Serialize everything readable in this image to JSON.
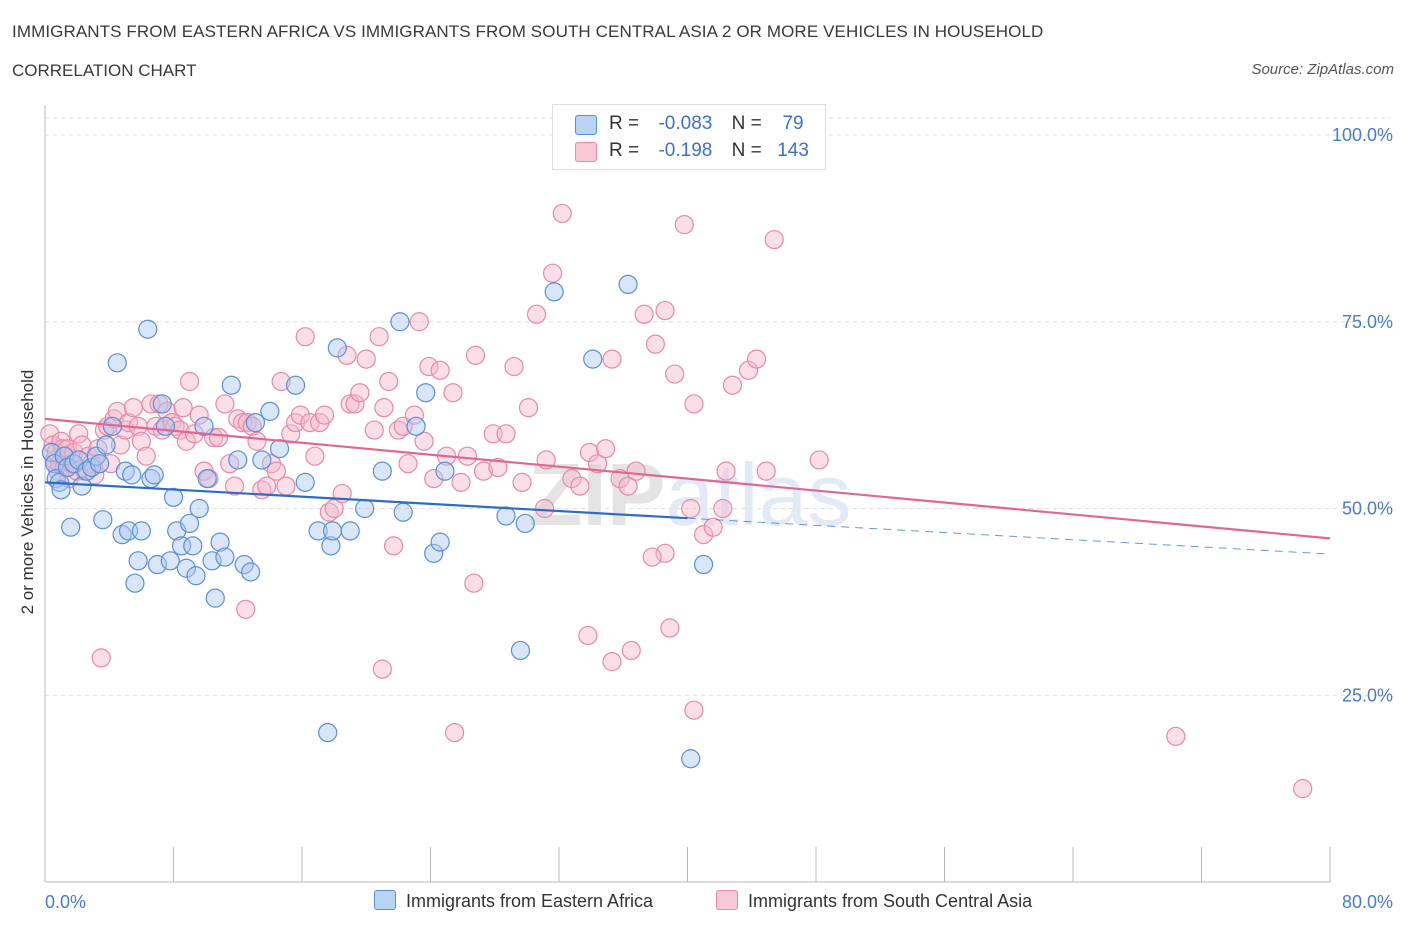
{
  "title": "IMMIGRANTS FROM EASTERN AFRICA VS IMMIGRANTS FROM SOUTH CENTRAL ASIA 2 OR MORE VEHICLES IN HOUSEHOLD",
  "subtitle": "CORRELATION CHART",
  "source": "Source: ZipAtlas.com",
  "watermark": "ZIPatlas",
  "legend": {
    "rows": [
      {
        "r_label": "R =",
        "r_value": "-0.083",
        "n_label": "N =",
        "n_value": "79"
      },
      {
        "r_label": "R =",
        "r_value": "-0.198",
        "n_label": "N =",
        "n_value": "143"
      }
    ]
  },
  "colors": {
    "blue_fill": "#aac8f0",
    "blue_stroke": "#5b8fd8",
    "blue_line": "#2e6cc8",
    "pink_fill": "#f5b8cb",
    "pink_stroke": "#e88aa8",
    "pink_line": "#e06890",
    "tick_text": "#4a7bd0",
    "grid": "#dddddd"
  },
  "chart_data": {
    "type": "scatter",
    "title": "IMMIGRANTS FROM EASTERN AFRICA VS IMMIGRANTS FROM SOUTH CENTRAL ASIA 2 OR MORE VEHICLES IN HOUSEHOLD",
    "xlabel": "",
    "ylabel": "2 or more Vehicles in Household",
    "xlim": [
      0,
      80
    ],
    "ylim": [
      0,
      100
    ],
    "x_tick_labels": [
      "0.0%",
      "80.0%"
    ],
    "y_ticks": [
      25,
      50,
      75,
      100
    ],
    "y_tick_labels": [
      "25.0%",
      "50.0%",
      "75.0%",
      "100.0%"
    ],
    "grid": true,
    "legend_position": "top-center",
    "series": [
      {
        "name": "Immigrants from Eastern Africa",
        "R": -0.083,
        "N": 79,
        "trend": {
          "x0": 0,
          "y0": 53.5,
          "x1": 40,
          "y1": 48.7,
          "dash_x1": 80,
          "dash_y1": 43.9
        },
        "points": [
          [
            0.4,
            57.5
          ],
          [
            0.6,
            56
          ],
          [
            0.7,
            54
          ],
          [
            0.9,
            53.5
          ],
          [
            1.0,
            52.5
          ],
          [
            1.2,
            57
          ],
          [
            1.4,
            55.5
          ],
          [
            1.6,
            47.5
          ],
          [
            1.8,
            56
          ],
          [
            2.1,
            56.5
          ],
          [
            2.3,
            53
          ],
          [
            2.6,
            55
          ],
          [
            2.9,
            55.5
          ],
          [
            3.2,
            57
          ],
          [
            3.4,
            56
          ],
          [
            3.6,
            48.5
          ],
          [
            3.8,
            58.5
          ],
          [
            4.2,
            61
          ],
          [
            4.5,
            69.5
          ],
          [
            4.8,
            46.5
          ],
          [
            5.0,
            55
          ],
          [
            5.2,
            47
          ],
          [
            5.4,
            54.5
          ],
          [
            5.6,
            40
          ],
          [
            5.8,
            43
          ],
          [
            6.0,
            47
          ],
          [
            6.4,
            74
          ],
          [
            6.6,
            54
          ],
          [
            6.8,
            54.5
          ],
          [
            7.0,
            42.5
          ],
          [
            7.3,
            64
          ],
          [
            7.5,
            61
          ],
          [
            7.8,
            43
          ],
          [
            8.0,
            51.5
          ],
          [
            8.2,
            47
          ],
          [
            8.5,
            45
          ],
          [
            8.8,
            42
          ],
          [
            9.0,
            48
          ],
          [
            9.2,
            45
          ],
          [
            9.4,
            41
          ],
          [
            9.6,
            50
          ],
          [
            9.9,
            61
          ],
          [
            10.1,
            54
          ],
          [
            10.4,
            43
          ],
          [
            10.6,
            38
          ],
          [
            10.9,
            45.5
          ],
          [
            11.2,
            43.5
          ],
          [
            11.6,
            66.5
          ],
          [
            12.0,
            56.5
          ],
          [
            12.4,
            42.5
          ],
          [
            12.8,
            41.5
          ],
          [
            13.1,
            61.5
          ],
          [
            13.5,
            56.5
          ],
          [
            14.0,
            63
          ],
          [
            14.6,
            58
          ],
          [
            15.6,
            66.5
          ],
          [
            16.2,
            53.5
          ],
          [
            17.0,
            47
          ],
          [
            17.6,
            20
          ],
          [
            17.8,
            45
          ],
          [
            17.9,
            47
          ],
          [
            18.2,
            71.5
          ],
          [
            19.0,
            47
          ],
          [
            19.9,
            50
          ],
          [
            21.0,
            55
          ],
          [
            22.3,
            49.5
          ],
          [
            23.1,
            61
          ],
          [
            24.2,
            44
          ],
          [
            24.6,
            45.5
          ],
          [
            22.1,
            75
          ],
          [
            23.7,
            65.5
          ],
          [
            24.9,
            55
          ],
          [
            28.7,
            49
          ],
          [
            29.6,
            31
          ],
          [
            29.9,
            48
          ],
          [
            31.7,
            79
          ],
          [
            34.1,
            70
          ],
          [
            36.3,
            80
          ],
          [
            40.2,
            16.5
          ],
          [
            41.0,
            42.5
          ]
        ]
      },
      {
        "name": "Immigrants from South Central Asia",
        "R": -0.198,
        "N": 143,
        "trend": {
          "x0": 0,
          "y0": 62,
          "x1": 80,
          "y1": 46
        },
        "points": [
          [
            0.3,
            60
          ],
          [
            0.5,
            58.5
          ],
          [
            0.6,
            56.5
          ],
          [
            0.7,
            57.5
          ],
          [
            0.8,
            55
          ],
          [
            0.9,
            56
          ],
          [
            1.0,
            59
          ],
          [
            1.1,
            58
          ],
          [
            1.2,
            55.5
          ],
          [
            1.3,
            57
          ],
          [
            1.4,
            58
          ],
          [
            1.5,
            54
          ],
          [
            1.7,
            56
          ],
          [
            1.8,
            57.5
          ],
          [
            2.0,
            55
          ],
          [
            2.1,
            60
          ],
          [
            2.3,
            58.5
          ],
          [
            2.5,
            55
          ],
          [
            2.7,
            57
          ],
          [
            2.9,
            56
          ],
          [
            3.1,
            54.5
          ],
          [
            3.3,
            58
          ],
          [
            3.5,
            30
          ],
          [
            3.7,
            60.5
          ],
          [
            3.9,
            61
          ],
          [
            4.1,
            56
          ],
          [
            4.3,
            62
          ],
          [
            4.5,
            63
          ],
          [
            4.7,
            58.5
          ],
          [
            5.0,
            60.5
          ],
          [
            5.2,
            61.5
          ],
          [
            5.5,
            63.5
          ],
          [
            5.8,
            61
          ],
          [
            6.0,
            59
          ],
          [
            6.3,
            57
          ],
          [
            6.6,
            64
          ],
          [
            6.9,
            61
          ],
          [
            7.1,
            64
          ],
          [
            7.3,
            60.5
          ],
          [
            7.6,
            63
          ],
          [
            7.9,
            61.5
          ],
          [
            8.1,
            61
          ],
          [
            8.4,
            60.5
          ],
          [
            8.6,
            63.5
          ],
          [
            8.8,
            59
          ],
          [
            9.0,
            67
          ],
          [
            9.3,
            60
          ],
          [
            9.6,
            62.5
          ],
          [
            9.9,
            55
          ],
          [
            10.2,
            54
          ],
          [
            10.5,
            59.5
          ],
          [
            10.8,
            59.5
          ],
          [
            11.2,
            64
          ],
          [
            11.5,
            56
          ],
          [
            11.8,
            53
          ],
          [
            12.0,
            62
          ],
          [
            12.3,
            61.5
          ],
          [
            12.6,
            61.5
          ],
          [
            12.9,
            61
          ],
          [
            13.2,
            59
          ],
          [
            13.5,
            52.5
          ],
          [
            13.8,
            53
          ],
          [
            14.1,
            56
          ],
          [
            14.4,
            55
          ],
          [
            14.7,
            67
          ],
          [
            15.0,
            53
          ],
          [
            15.3,
            60
          ],
          [
            15.6,
            61.5
          ],
          [
            15.9,
            62.5
          ],
          [
            16.2,
            73
          ],
          [
            16.5,
            61.5
          ],
          [
            16.8,
            57
          ],
          [
            17.1,
            61.5
          ],
          [
            17.4,
            62.5
          ],
          [
            17.7,
            49.5
          ],
          [
            18.0,
            50
          ],
          [
            18.5,
            52
          ],
          [
            18.8,
            70.5
          ],
          [
            19.0,
            64
          ],
          [
            19.3,
            64
          ],
          [
            19.6,
            65.5
          ],
          [
            20.0,
            70
          ],
          [
            20.5,
            60.5
          ],
          [
            20.8,
            73
          ],
          [
            21.1,
            63.5
          ],
          [
            21.4,
            67
          ],
          [
            21.7,
            45
          ],
          [
            22.0,
            60.5
          ],
          [
            22.3,
            61
          ],
          [
            22.6,
            56
          ],
          [
            23.0,
            62.5
          ],
          [
            23.3,
            75
          ],
          [
            23.6,
            59
          ],
          [
            23.9,
            69
          ],
          [
            24.2,
            54
          ],
          [
            24.6,
            68.5
          ],
          [
            25.0,
            57
          ],
          [
            25.4,
            65.5
          ],
          [
            25.9,
            53.5
          ],
          [
            26.3,
            57
          ],
          [
            26.8,
            70.5
          ],
          [
            27.3,
            55
          ],
          [
            27.9,
            60
          ],
          [
            28.2,
            55.5
          ],
          [
            28.7,
            60
          ],
          [
            29.2,
            69
          ],
          [
            29.7,
            53.5
          ],
          [
            30.1,
            63.5
          ],
          [
            30.6,
            76
          ],
          [
            31.2,
            56.5
          ],
          [
            31.6,
            81.5
          ],
          [
            32.2,
            89.5
          ],
          [
            32.8,
            54
          ],
          [
            33.3,
            53
          ],
          [
            33.9,
            57.5
          ],
          [
            34.4,
            56
          ],
          [
            34.9,
            58
          ],
          [
            35.3,
            70
          ],
          [
            35.8,
            54
          ],
          [
            36.3,
            53
          ],
          [
            36.8,
            55
          ],
          [
            37.3,
            76
          ],
          [
            38.0,
            72
          ],
          [
            38.6,
            76.5
          ],
          [
            39.2,
            68
          ],
          [
            39.8,
            88
          ],
          [
            40.4,
            64
          ],
          [
            41.0,
            46.5
          ],
          [
            41.6,
            47.5
          ],
          [
            42.2,
            50
          ],
          [
            42.8,
            66.5
          ],
          [
            43.8,
            68.5
          ],
          [
            44.3,
            70
          ],
          [
            45.4,
            86
          ],
          [
            48.2,
            56.5
          ],
          [
            38.6,
            44
          ],
          [
            37.8,
            43.5
          ],
          [
            38.9,
            34
          ],
          [
            40.4,
            23
          ],
          [
            33.8,
            33
          ],
          [
            26.7,
            40
          ],
          [
            25.5,
            20
          ],
          [
            21.0,
            28.5
          ],
          [
            12.5,
            36.5
          ],
          [
            35.3,
            29.5
          ],
          [
            36.5,
            31
          ],
          [
            70.4,
            19.5
          ],
          [
            78.3,
            12.5
          ],
          [
            42.4,
            55
          ],
          [
            40.2,
            50
          ],
          [
            44.9,
            55
          ],
          [
            31.1,
            50
          ]
        ]
      }
    ]
  },
  "bottom_legend": [
    "Immigrants from Eastern Africa",
    "Immigrants from South Central Asia"
  ]
}
